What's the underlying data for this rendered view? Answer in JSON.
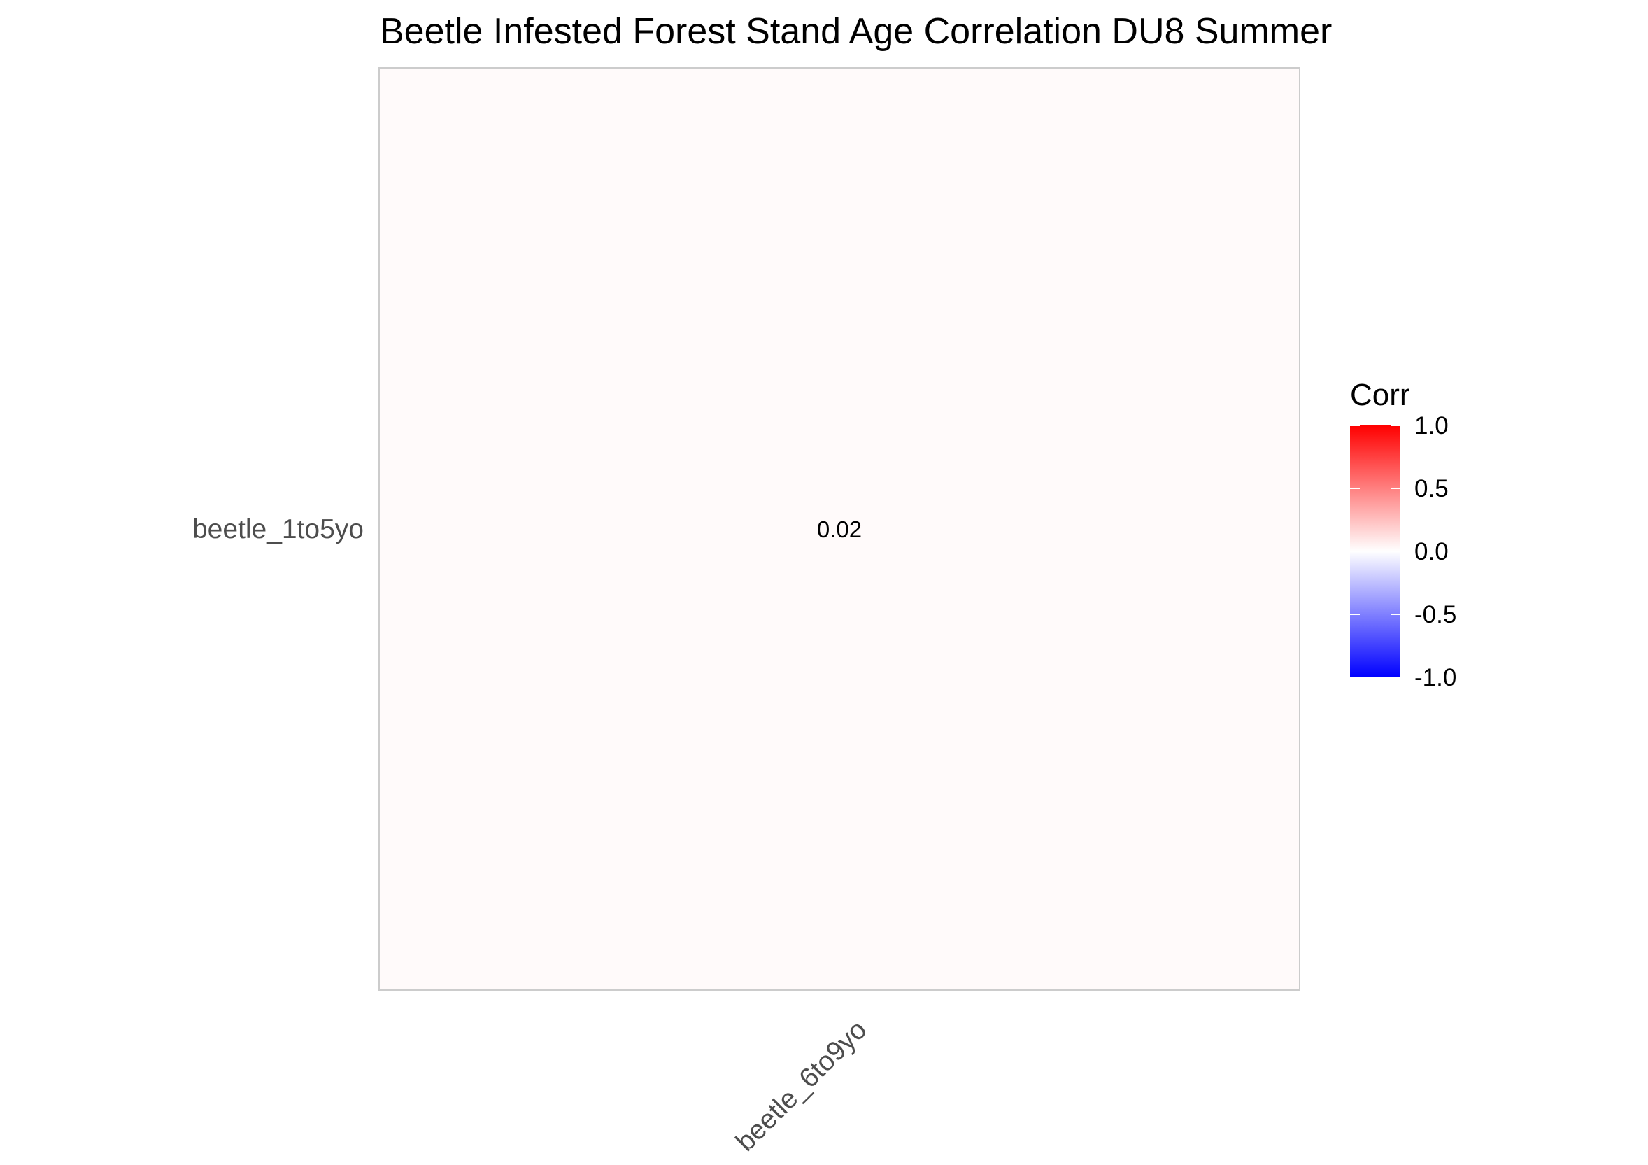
{
  "chart_data": {
    "type": "heatmap",
    "title": "Beetle Infested Forest Stand Age Correlation DU8 Summer",
    "x_categories": [
      "beetle_6to9yo"
    ],
    "y_categories": [
      "beetle_1to5yo"
    ],
    "cells": [
      {
        "x": "beetle_6to9yo",
        "y": "beetle_1to5yo",
        "value": 0.02,
        "label": "0.02"
      }
    ],
    "legend": {
      "title": "Corr",
      "range": [
        -1,
        1
      ],
      "ticks": [
        1.0,
        0.5,
        0.0,
        -0.5,
        -1.0
      ],
      "tick_labels": [
        "1.0",
        "0.5",
        "0.0",
        "-0.5",
        "-1.0"
      ],
      "placement": "right"
    },
    "colors": {
      "low": "#0000FF",
      "mid": "#FFFFFF",
      "high": "#FF0000",
      "cell_border": "#cccccc"
    },
    "grid": false
  }
}
